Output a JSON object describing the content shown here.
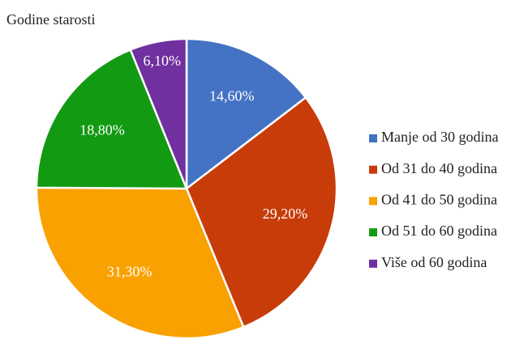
{
  "chart_data": {
    "type": "pie",
    "title": "Godine starosti",
    "categories": [
      "Manje od 30 godina",
      "Od 31 do 40 godina",
      "Od 41 do 50 godina",
      "Od 51 do 60 godina",
      "Više od 60 godina"
    ],
    "values": [
      14.6,
      29.2,
      31.3,
      18.8,
      6.1
    ],
    "value_labels": [
      "14,60%",
      "29,20%",
      "31,30%",
      "18,80%",
      "6,10%"
    ],
    "colors": [
      "#4472c4",
      "#c83c0a",
      "#f9a100",
      "#139a13",
      "#7030a0"
    ],
    "legend": "right"
  }
}
